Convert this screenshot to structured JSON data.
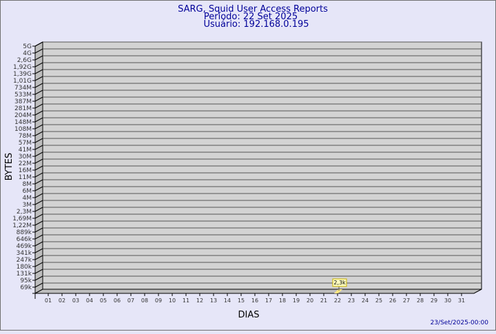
{
  "chart_data": {
    "type": "bar",
    "title": "SARG, Squid User Access Reports",
    "subtitle_period": "Período: 22 Set 2025",
    "subtitle_user": "Usuário: 192.168.0.195",
    "xlabel": "DIAS",
    "ylabel": "BYTES",
    "y_scale": "log",
    "y_tick_labels": [
      "5G",
      "4G",
      "2,6G",
      "1,92G",
      "1,39G",
      "1,01G",
      "734M",
      "533M",
      "387M",
      "281M",
      "204M",
      "148M",
      "108M",
      "78M",
      "57M",
      "41M",
      "30M",
      "22M",
      "16M",
      "11M",
      "8M",
      "6M",
      "4M",
      "3M",
      "2,3M",
      "1,69M",
      "1,22M",
      "889k",
      "646k",
      "469k",
      "341k",
      "247k",
      "180k",
      "131k",
      "95k",
      "69k"
    ],
    "categories": [
      "01",
      "02",
      "03",
      "04",
      "05",
      "06",
      "07",
      "08",
      "09",
      "10",
      "11",
      "12",
      "13",
      "14",
      "15",
      "16",
      "17",
      "18",
      "19",
      "20",
      "21",
      "22",
      "23",
      "24",
      "25",
      "26",
      "27",
      "28",
      "29",
      "30",
      "31"
    ],
    "values": [
      {
        "day": "22",
        "bytes": 2300,
        "label": "2,3k"
      }
    ],
    "grid": true,
    "colors": {
      "bar": "#ffe680",
      "plot_bg": "#d3d3d3",
      "title": "#000099",
      "background": "#e6e6f8"
    }
  },
  "footer": {
    "timestamp": "23/Set/2025-00:00"
  }
}
